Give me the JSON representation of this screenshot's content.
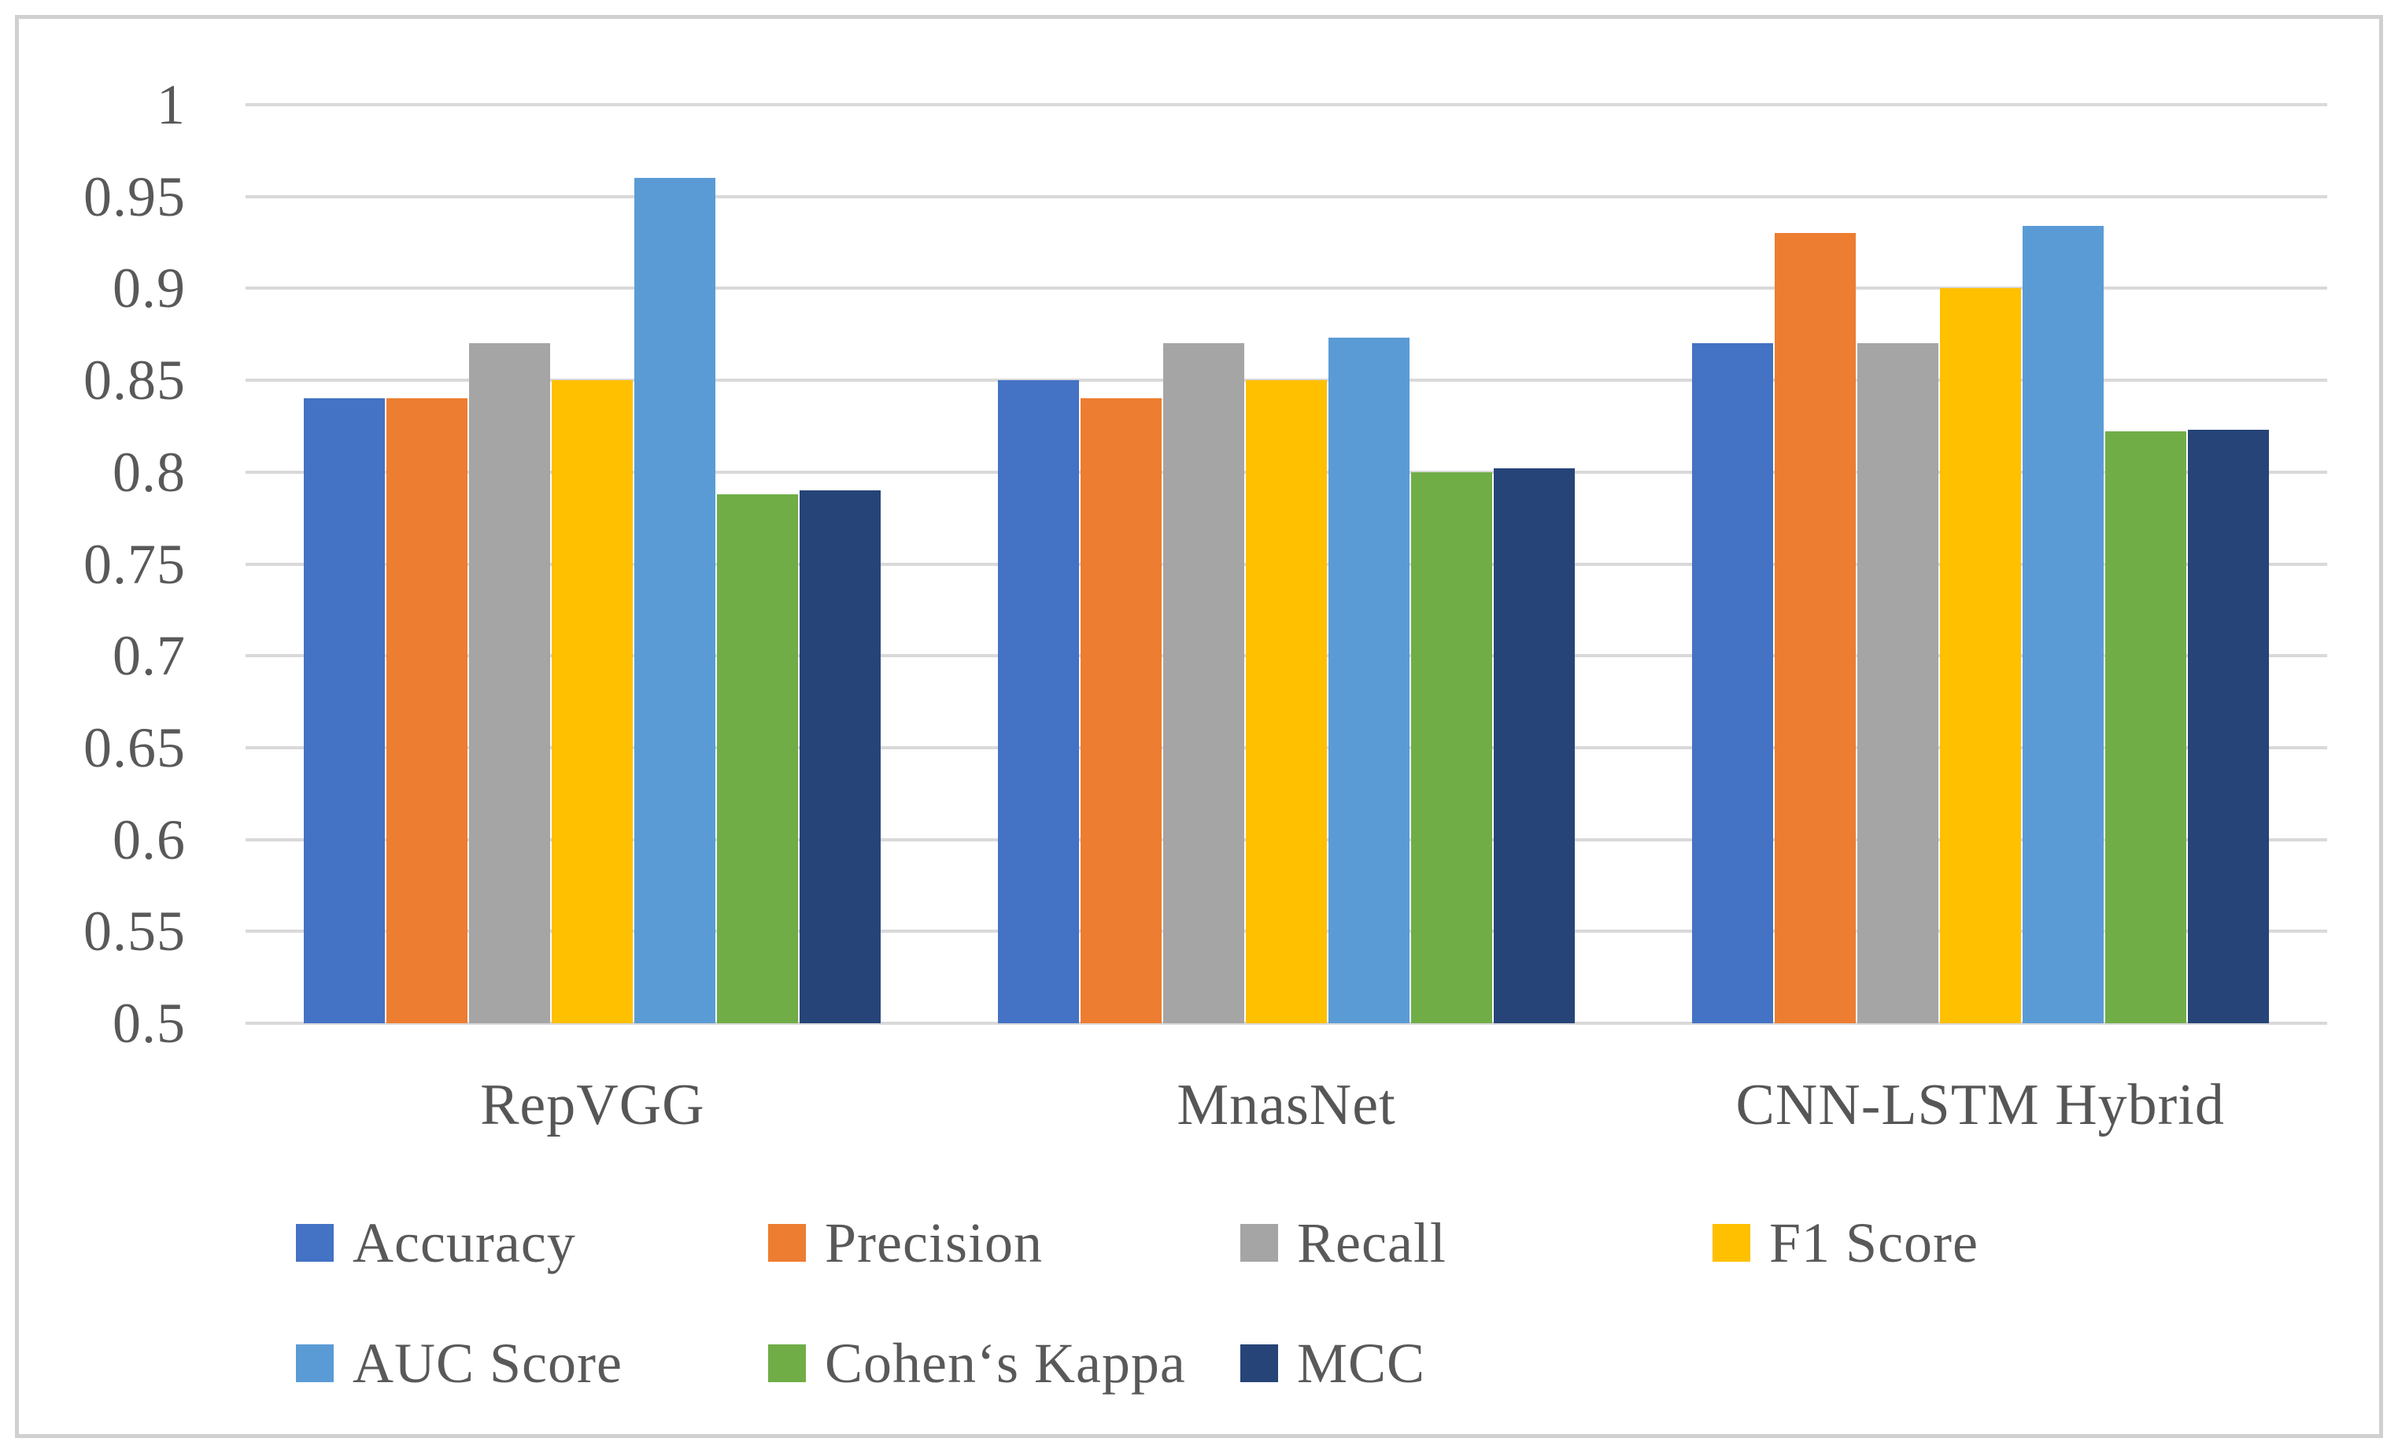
{
  "chart_data": {
    "type": "bar",
    "title": "",
    "xlabel": "",
    "ylabel": "",
    "categories": [
      "RepVGG",
      "MnasNet",
      "CNN-LSTM Hybrid"
    ],
    "series": [
      {
        "name": "Accuracy",
        "color": "#4472C4",
        "values": [
          0.84,
          0.85,
          0.87
        ]
      },
      {
        "name": "Precision",
        "color": "#ED7D31",
        "values": [
          0.84,
          0.84,
          0.93
        ]
      },
      {
        "name": "Recall",
        "color": "#A5A5A5",
        "values": [
          0.87,
          0.87,
          0.87
        ]
      },
      {
        "name": "F1 Score",
        "color": "#FFC000",
        "values": [
          0.85,
          0.85,
          0.9
        ]
      },
      {
        "name": "AUC Score",
        "color": "#5B9BD5",
        "values": [
          0.96,
          0.873,
          0.934
        ]
      },
      {
        "name": "Cohen‘s Kappa",
        "color": "#70AD47",
        "values": [
          0.788,
          0.8,
          0.822
        ]
      },
      {
        "name": "MCC",
        "color": "#264478",
        "values": [
          0.79,
          0.802,
          0.823
        ]
      }
    ],
    "ylim": [
      0.5,
      1.0
    ],
    "ytick_step": 0.05,
    "ytick_labels": [
      "1",
      "0.95",
      "0.9",
      "0.85",
      "0.8",
      "0.75",
      "0.7",
      "0.65",
      "0.6",
      "0.55",
      "0.5"
    ],
    "grid": true,
    "legend_position": "bottom",
    "legend_rows": [
      [
        "Accuracy",
        "Precision",
        "Recall",
        "F1 Score"
      ],
      [
        "AUC Score",
        "Cohen‘s Kappa",
        "MCC"
      ]
    ]
  },
  "colors": {
    "grid": "#D9D9D9",
    "axis_text": "#595959",
    "category_text": "#565656",
    "frame_border": "#D0D0D0",
    "background": "#FFFFFF"
  }
}
